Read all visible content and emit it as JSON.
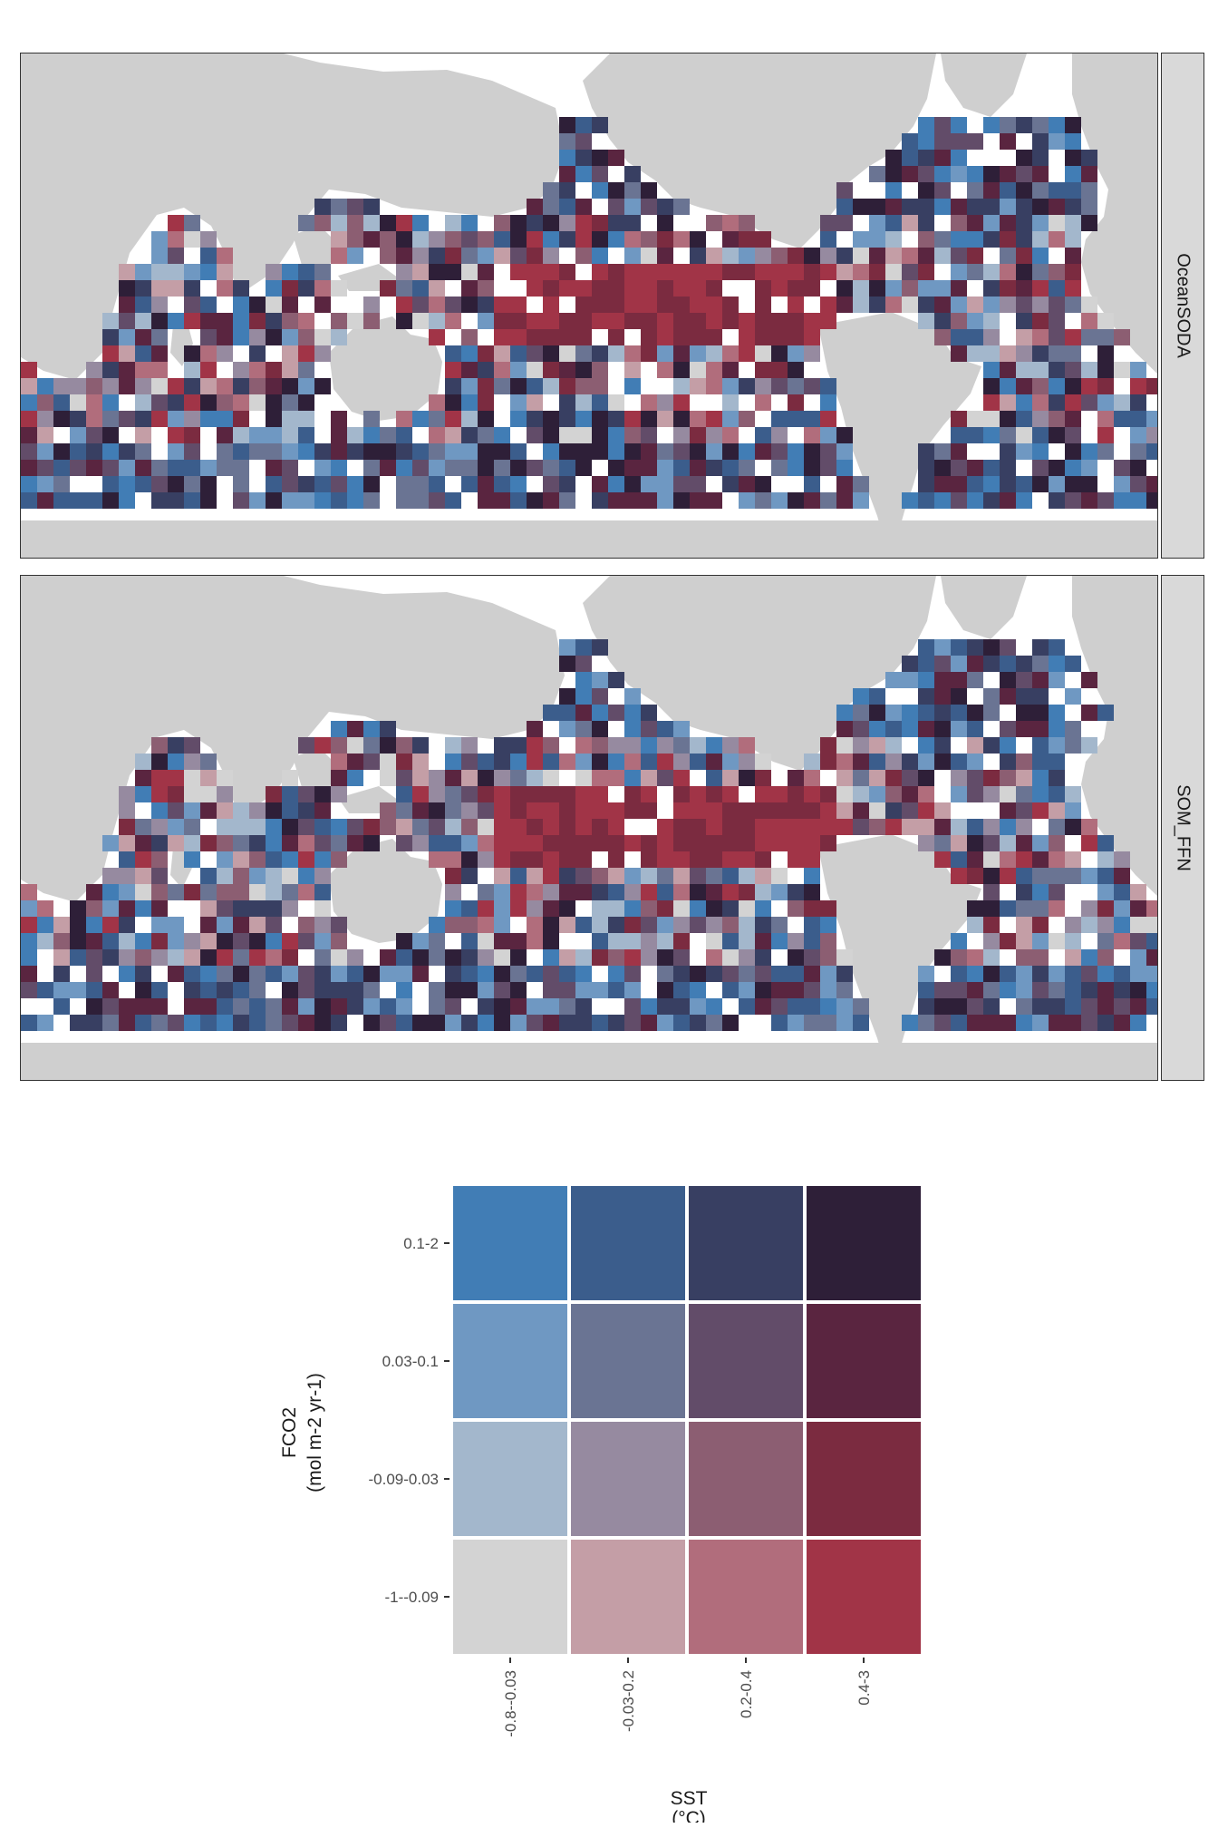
{
  "panels": [
    {
      "label": "OceanSODA",
      "seed": 17
    },
    {
      "label": "SOM_FFN",
      "seed": 53
    }
  ],
  "colors": {
    "land": "#cfcfcf",
    "ocean": "#ffffff",
    "grid_rows_fco2_high_to_low": [
      [
        "#417db5",
        "#3b5d8c",
        "#383f62",
        "#2e1f38"
      ],
      [
        "#6f98c2",
        "#6a7493",
        "#624c69",
        "#5a2540"
      ],
      [
        "#a3b7cc",
        "#968aa0",
        "#8c5e72",
        "#7b2b40"
      ],
      [
        "#d3d3d3",
        "#c49ea6",
        "#b16d7c",
        "#a13447"
      ]
    ]
  },
  "chart_data": {
    "type": "heatmap",
    "title": "",
    "xlabel": "SST",
    "xlabel_unit": "(°C)",
    "ylabel": "FCO2",
    "ylabel_unit": "(mol m-2 yr-1)",
    "x_categories": [
      "-0.8--0.03",
      "-0.03-0.2",
      "0.2-0.4",
      "0.4-3"
    ],
    "y_categories": [
      "-1--0.09",
      "-0.09-0.03",
      "0.03-0.1",
      "0.1-2"
    ]
  }
}
